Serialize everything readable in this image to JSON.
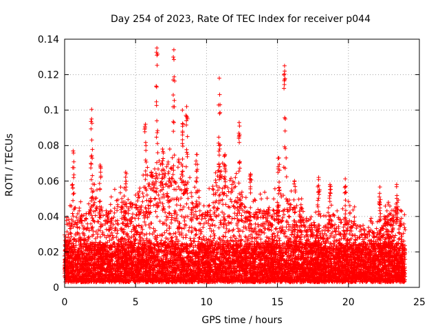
{
  "chart_data": {
    "type": "scatter",
    "title": "Day 254 of 2023, Rate Of TEC Index for receiver p044",
    "xlabel": "GPS time / hours",
    "ylabel": "ROTI / TECUs",
    "xlim": [
      0,
      25
    ],
    "ylim": [
      0,
      0.14
    ],
    "xticks": [
      0,
      5,
      10,
      15,
      20,
      25
    ],
    "yticks": [
      0,
      0.02,
      0.04,
      0.06,
      0.08,
      0.1,
      0.12,
      0.14
    ],
    "xtick_labels": [
      "0",
      "5",
      "10",
      "15",
      "20",
      "25"
    ],
    "ytick_labels": [
      "0",
      "0.02",
      "0.04",
      "0.06",
      "0.08",
      "0.1",
      "0.12",
      "0.14"
    ],
    "grid": true,
    "marker": "+",
    "color": "#ff0000",
    "envelope": {
      "x": [
        0,
        0.5,
        1.0,
        1.5,
        2.0,
        2.5,
        3.0,
        3.5,
        4.0,
        4.5,
        5.0,
        5.5,
        6.0,
        6.5,
        7.0,
        7.5,
        8.0,
        8.5,
        9.0,
        9.5,
        10.0,
        10.5,
        11.0,
        11.5,
        12.0,
        12.5,
        13.0,
        13.5,
        14.0,
        14.5,
        15.0,
        15.5,
        16.0,
        16.5,
        17.0,
        17.5,
        18.0,
        18.5,
        19.0,
        19.5,
        20.0,
        20.5,
        21.0,
        21.5,
        22.0,
        22.5,
        23.0,
        23.5,
        24.0
      ],
      "typical_max": [
        0.03,
        0.04,
        0.045,
        0.04,
        0.05,
        0.045,
        0.04,
        0.045,
        0.05,
        0.045,
        0.05,
        0.055,
        0.06,
        0.07,
        0.065,
        0.07,
        0.07,
        0.06,
        0.05,
        0.045,
        0.04,
        0.06,
        0.065,
        0.05,
        0.06,
        0.045,
        0.04,
        0.04,
        0.045,
        0.04,
        0.05,
        0.05,
        0.045,
        0.04,
        0.035,
        0.035,
        0.03,
        0.035,
        0.04,
        0.035,
        0.04,
        0.035,
        0.03,
        0.03,
        0.03,
        0.035,
        0.04,
        0.045,
        0.035
      ]
    },
    "peaks": [
      {
        "x": 0.6,
        "y": 0.077
      },
      {
        "x": 1.9,
        "y": 0.095
      },
      {
        "x": 2.5,
        "y": 0.069
      },
      {
        "x": 4.3,
        "y": 0.065
      },
      {
        "x": 5.7,
        "y": 0.092
      },
      {
        "x": 6.5,
        "y": 0.135
      },
      {
        "x": 6.9,
        "y": 0.078
      },
      {
        "x": 7.7,
        "y": 0.134
      },
      {
        "x": 8.3,
        "y": 0.1
      },
      {
        "x": 8.6,
        "y": 0.102
      },
      {
        "x": 9.3,
        "y": 0.075
      },
      {
        "x": 10.9,
        "y": 0.118
      },
      {
        "x": 11.3,
        "y": 0.075
      },
      {
        "x": 12.3,
        "y": 0.093
      },
      {
        "x": 13.1,
        "y": 0.064
      },
      {
        "x": 15.1,
        "y": 0.073
      },
      {
        "x": 15.5,
        "y": 0.125
      },
      {
        "x": 16.2,
        "y": 0.06
      },
      {
        "x": 16.7,
        "y": 0.05
      },
      {
        "x": 17.9,
        "y": 0.062
      },
      {
        "x": 18.7,
        "y": 0.058
      },
      {
        "x": 19.8,
        "y": 0.057
      },
      {
        "x": 22.2,
        "y": 0.053
      },
      {
        "x": 23.4,
        "y": 0.058
      }
    ]
  }
}
